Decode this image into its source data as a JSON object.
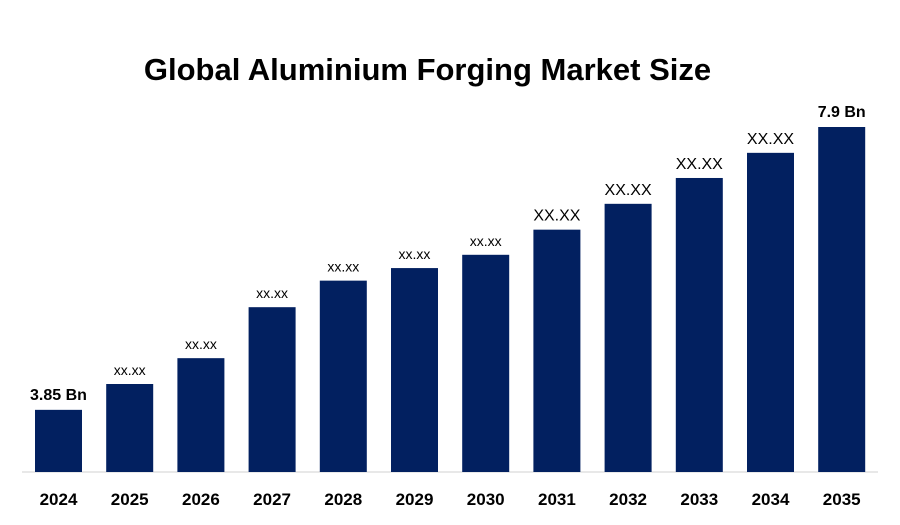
{
  "chart_data": {
    "type": "bar",
    "title": "Global Aluminium Forging Market Size",
    "xlabel": "",
    "ylabel": "",
    "categories": [
      "2024",
      "2025",
      "2026",
      "2027",
      "2028",
      "2029",
      "2030",
      "2031",
      "2032",
      "2033",
      "2034",
      "2035"
    ],
    "values": [
      3.85,
      4.22,
      4.59,
      5.32,
      5.7,
      5.88,
      6.07,
      6.43,
      6.8,
      7.17,
      7.53,
      7.9
    ],
    "data_labels": [
      "3.85 Bn",
      "xx.xx",
      "xx.xx",
      "xx.xx",
      "xx.xx",
      "xx.xx",
      "xx.xx",
      "XX.XX",
      "XX.XX",
      "XX.XX",
      "XX.XX",
      "7.9 Bn"
    ],
    "ylim": [
      2.96,
      8.2
    ],
    "grid": false,
    "legend": "none",
    "bar_color": "#022060"
  }
}
